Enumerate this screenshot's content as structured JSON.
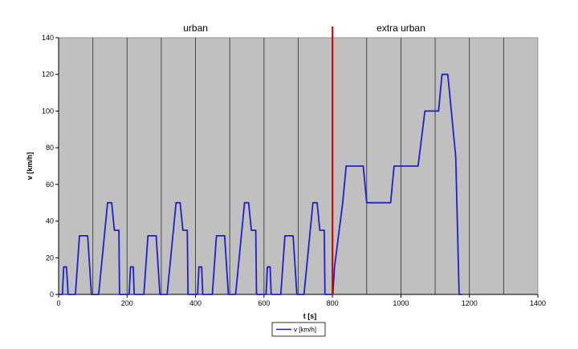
{
  "chart_data": {
    "type": "line",
    "xlabel": "t [s]",
    "ylabel": "v [km/h]",
    "xlim": [
      0,
      1400
    ],
    "ylim": [
      0,
      140
    ],
    "x_ticks": [
      0,
      200,
      400,
      600,
      800,
      1000,
      1200,
      1400
    ],
    "y_ticks": [
      0,
      20,
      40,
      60,
      80,
      100,
      120,
      140
    ],
    "grid": "vertical lines every 100 s, grey plot background",
    "legend_position": "bottom-center",
    "region_labels": [
      {
        "text": "urban",
        "x": 400
      },
      {
        "text": "extra urban",
        "x": 1000
      }
    ],
    "divider": {
      "x": 800,
      "color": "#cc0000"
    },
    "series": [
      {
        "name": "v [km/h]",
        "color": "#2020c8",
        "x": [
          0,
          11,
          15,
          23,
          28,
          49,
          61,
          85,
          96,
          112,
          117,
          143,
          155,
          163,
          176,
          178,
          188,
          195,
          206,
          210,
          218,
          221,
          249,
          261,
          285,
          296,
          312,
          317,
          343,
          355,
          363,
          376,
          378,
          388,
          395,
          406,
          410,
          418,
          421,
          449,
          461,
          485,
          496,
          512,
          517,
          543,
          555,
          563,
          576,
          578,
          588,
          595,
          606,
          610,
          618,
          621,
          649,
          661,
          685,
          696,
          712,
          717,
          743,
          755,
          763,
          776,
          778,
          788,
          795,
          800,
          801,
          806,
          830,
          840,
          860,
          890,
          900,
          970,
          980,
          1000,
          1050,
          1070,
          1100,
          1110,
          1120,
          1124,
          1137,
          1160,
          1170,
          1180
        ],
        "values": [
          0,
          0,
          15,
          15,
          0,
          0,
          32,
          32,
          0,
          0,
          0,
          50,
          50,
          35,
          35,
          0,
          0,
          0,
          0,
          15,
          15,
          0,
          0,
          32,
          32,
          0,
          0,
          0,
          50,
          50,
          35,
          35,
          0,
          0,
          0,
          0,
          15,
          15,
          0,
          0,
          32,
          32,
          0,
          0,
          0,
          50,
          50,
          35,
          35,
          0,
          0,
          0,
          0,
          15,
          15,
          0,
          0,
          32,
          32,
          0,
          0,
          0,
          50,
          50,
          35,
          35,
          0,
          0,
          0,
          0,
          0,
          15,
          50,
          70,
          70,
          70,
          50,
          50,
          70,
          70,
          70,
          100,
          100,
          100,
          120,
          120,
          120,
          75,
          0,
          0
        ]
      }
    ]
  }
}
